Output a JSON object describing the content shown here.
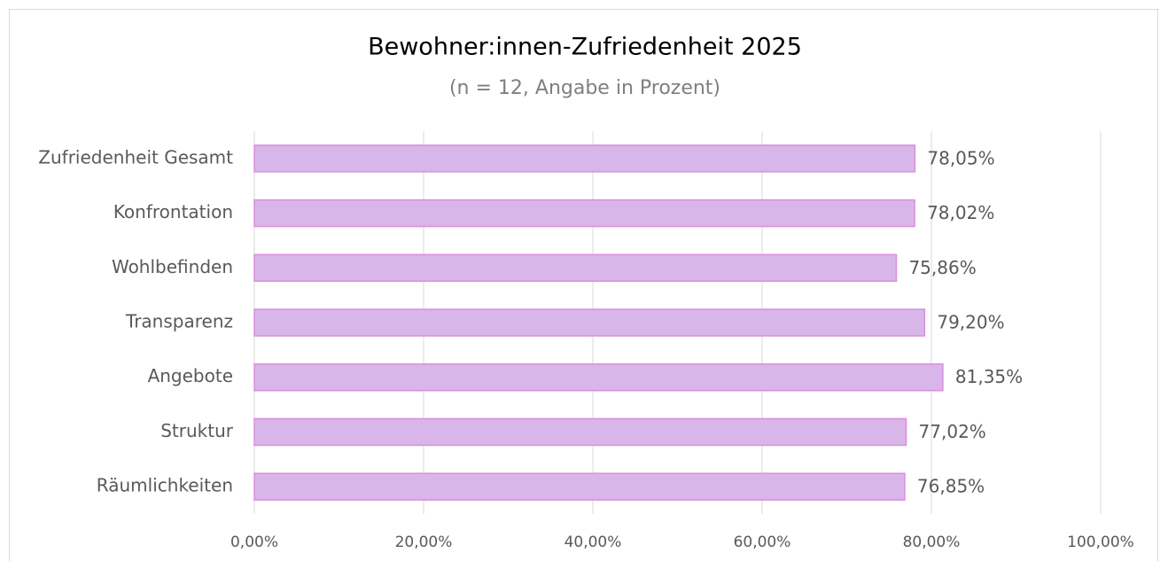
{
  "chart_data": {
    "type": "bar",
    "orientation": "horizontal",
    "title": "Bewohner:innen-Zufriedenheit 2025",
    "subtitle": "(n = 12, Angabe in Prozent)",
    "categories": [
      "Zufriedenheit Gesamt",
      "Konfrontation",
      "Wohlbefinden",
      "Transparenz",
      "Angebote",
      "Struktur",
      "Räumlichkeiten"
    ],
    "values": [
      78.05,
      78.02,
      75.86,
      79.2,
      81.35,
      77.02,
      76.85
    ],
    "value_labels": [
      "78,05%",
      "78,02%",
      "75,86%",
      "79,20%",
      "81,35%",
      "77,02%",
      "76,85%"
    ],
    "color": "#d9b6ea",
    "edge_color": "#d98fdc",
    "xlim": [
      0,
      100
    ],
    "xticks": [
      {
        "value": 0,
        "label": "0,00%"
      },
      {
        "value": 20,
        "label": "20,00%"
      },
      {
        "value": 40,
        "label": "40,00%"
      },
      {
        "value": 60,
        "label": "60,00%"
      },
      {
        "value": 80,
        "label": "80,00%"
      },
      {
        "value": 100,
        "label": "100,00%"
      }
    ],
    "grid": true
  }
}
